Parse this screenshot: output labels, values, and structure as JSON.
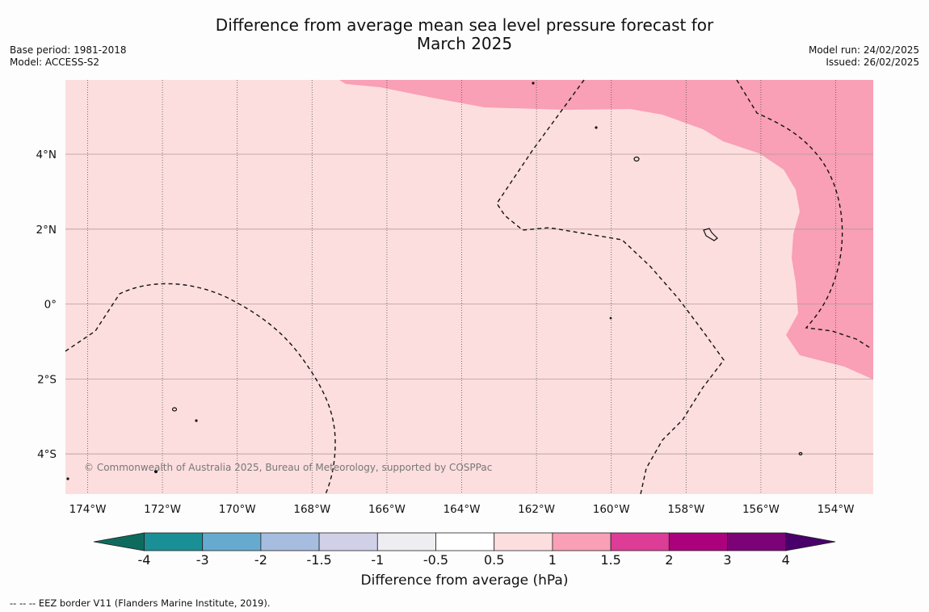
{
  "title_line1": "Difference from average mean sea level pressure forecast for",
  "title_line2": "March 2025",
  "base_period": "Base period: 1981-2018",
  "model": "Model: ACCESS-S2",
  "model_run": "Model run: 24/02/2025",
  "issued": "Issued: 26/02/2025",
  "copyright": "© Commonwealth of Australia 2025, Bureau of Meteorology, supported by COSPPac",
  "footnote": "--  --  -- EEZ border V11 (Flanders Marine Institute, 2019).",
  "colors": {
    "background_anomaly": "#fddede",
    "high_anomaly": "#f99fb6",
    "grid": "#b59a9a"
  },
  "map": {
    "lon_labels": [
      "174°W",
      "172°W",
      "170°W",
      "168°W",
      "166°W",
      "164°W",
      "162°W",
      "160°W",
      "158°W",
      "156°W",
      "154°W"
    ],
    "lat_labels": [
      "4°N",
      "2°N",
      "0°",
      "2°S",
      "4°S"
    ]
  },
  "colorbar": {
    "title": "Difference from average (hPa)",
    "tick_labels": [
      "-4",
      "-3",
      "-2",
      "-1.5",
      "-1",
      "-0.5",
      "0.5",
      "1",
      "1.5",
      "2",
      "3",
      "4"
    ],
    "colors": [
      "#0d6b5e",
      "#1b8f96",
      "#67aad0",
      "#a7bde0",
      "#d0d1e8",
      "#eeedf2",
      "#ffffff",
      "#fddede",
      "#f99fb6",
      "#dd3c97",
      "#ac017d",
      "#7b0277",
      "#49006a"
    ]
  }
}
